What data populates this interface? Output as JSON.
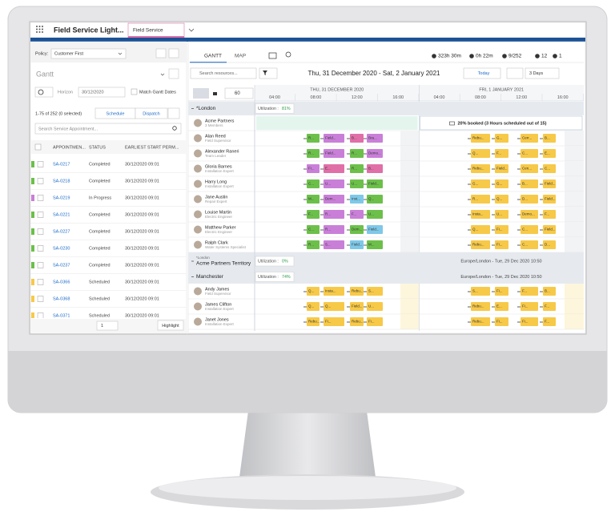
{
  "top_bar": {
    "app_name": "Field Service Light...",
    "tab": "Field Service"
  },
  "left_panel": {
    "policy_label": "Policy:",
    "policy": "Customer First",
    "view": "Gantt",
    "horizon_label": "Horizon",
    "horizon_date": "30/12/2020",
    "match_label": "Match Gantt Dates",
    "count": "1-75 of 252 (0 selected)",
    "schedule": "Schedule",
    "dispatch": "Dispatch",
    "search_placeholder": "Search Service Appointment...",
    "columns": [
      "APPOINTMEN...",
      "STATUS",
      "EARLIEST START PERM..."
    ],
    "rows": [
      {
        "id": "SA-0217",
        "status": "Completed",
        "start": "30/12/2020 09:01",
        "color": "#6cc04a"
      },
      {
        "id": "SA-0218",
        "status": "Completed",
        "start": "30/12/2020 09:01",
        "color": "#6cc04a"
      },
      {
        "id": "SA-0219",
        "status": "In Progress",
        "start": "30/12/2020 09:01",
        "color": "#c97fd8"
      },
      {
        "id": "SA-0221",
        "status": "Completed",
        "start": "30/12/2020 09:01",
        "color": "#6cc04a"
      },
      {
        "id": "SA-0227",
        "status": "Completed",
        "start": "30/12/2020 09:01",
        "color": "#6cc04a"
      },
      {
        "id": "SA-0230",
        "status": "Completed",
        "start": "30/12/2020 09:01",
        "color": "#6cc04a"
      },
      {
        "id": "SA-0237",
        "status": "Completed",
        "start": "30/12/2020 09:01",
        "color": "#6cc04a"
      },
      {
        "id": "SA-0366",
        "status": "Scheduled",
        "start": "30/12/2020 09:01",
        "color": "#f7c948"
      },
      {
        "id": "SA-0368",
        "status": "Scheduled",
        "start": "30/12/2020 09:01",
        "color": "#f7c948"
      },
      {
        "id": "SA-0371",
        "status": "Scheduled",
        "start": "30/12/2020 09:01",
        "color": "#f7c948"
      }
    ],
    "page": "1",
    "highlight": "Highlight"
  },
  "gantt": {
    "tabs": [
      "GANTT",
      "MAP"
    ],
    "stats": [
      "323h 30m",
      "0h 22m",
      "9/252",
      "12",
      "1"
    ],
    "date_range": "Thu, 31 December 2020 - Sat, 2 January 2021",
    "today": "Today",
    "range": "3 Days",
    "search_placeholder": "Search resources...",
    "zoom": "60",
    "days": [
      "THU, 31 DECEMBER 2020",
      "FRI, 1 JANUARY 2021"
    ],
    "times": [
      [
        "04:00",
        "08:00",
        "12:00",
        "16:00"
      ],
      [
        "04:00",
        "08:00",
        "12:00",
        "16:00"
      ]
    ],
    "groups": [
      {
        "name": "*London",
        "utilization_label": "Utilization :",
        "utilization": "81%",
        "crew": {
          "name": "Acme Partners",
          "role": "3 Members",
          "booking": "20% booked (3 Hours scheduled out of 15)"
        },
        "resources": [
          {
            "name": "Alan Reed",
            "role": "Field Supervisor",
            "day1": [
              [
                "R...",
                "#6cc04a"
              ],
              [
                "Field...",
                "#c97fd8"
              ],
              [
                "B...",
                "#e06fa8"
              ],
              [
                "Bra...",
                "#c97fd8"
              ]
            ],
            "day2": [
              [
                "Rebu...",
                "#f7c948"
              ],
              [
                "G...",
                "#f7c948"
              ],
              [
                "Cerr...",
                "#f7c948"
              ],
              [
                "B...",
                "#f7c948"
              ]
            ]
          },
          {
            "name": "Alexander Raneri",
            "role": "Team Leader",
            "day1": [
              [
                "R...",
                "#6cc04a"
              ],
              [
                "Field...",
                "#c97fd8"
              ],
              [
                "R...",
                "#6cc04a"
              ],
              [
                "Demo...",
                "#c97fd8"
              ]
            ],
            "day2": [
              [
                "Q...",
                "#f7c948"
              ],
              [
                "F...",
                "#f7c948"
              ],
              [
                "C...",
                "#f7c948"
              ],
              [
                "E...",
                "#f7c948"
              ]
            ]
          },
          {
            "name": "Gloria Barnes",
            "role": "Installation Expert",
            "day1": [
              [
                "Fi...",
                "#c97fd8"
              ],
              [
                "E...",
                "#e06fa8"
              ],
              [
                "R...",
                "#6cc04a"
              ],
              [
                "B...",
                "#e06fa8"
              ]
            ],
            "day2": [
              [
                "Rebu...",
                "#f7c948"
              ],
              [
                "Field...",
                "#f7c948"
              ],
              [
                "Cen...",
                "#f7c948"
              ],
              [
                "C...",
                "#f7c948"
              ]
            ]
          },
          {
            "name": "Harry Long",
            "role": "Installation Expert",
            "day1": [
              [
                "C...",
                "#6cc04a"
              ],
              [
                "U...",
                "#c97fd8"
              ],
              [
                "U...",
                "#6cc04a"
              ],
              [
                "Field...",
                "#6cc04a"
              ]
            ],
            "day2": [
              [
                "G...",
                "#f7c948"
              ],
              [
                "G...",
                "#f7c948"
              ],
              [
                "B...",
                "#f7c948"
              ],
              [
                "Field...",
                "#f7c948"
              ]
            ]
          },
          {
            "name": "Jane Austin",
            "role": "Repair Expert",
            "day1": [
              [
                "M...",
                "#6cc04a"
              ],
              [
                "Dem...",
                "#c97fd8"
              ],
              [
                "Inst...",
                "#7ec8e8"
              ],
              [
                "Q...",
                "#6cc04a"
              ]
            ],
            "day2": [
              [
                "R...",
                "#f7c948"
              ],
              [
                "Q...",
                "#f7c948"
              ],
              [
                "D...",
                "#f7c948"
              ],
              [
                "Field...",
                "#f7c948"
              ]
            ]
          },
          {
            "name": "Louise Martin",
            "role": "Electric Engineer",
            "day1": [
              [
                "F...",
                "#6cc04a"
              ],
              [
                "R...",
                "#c97fd8"
              ],
              [
                "F...",
                "#c97fd8"
              ],
              [
                "U...",
                "#6cc04a"
              ]
            ],
            "day2": [
              [
                "Insta...",
                "#f7c948"
              ],
              [
                "U...",
                "#f7c948"
              ],
              [
                "Demo...",
                "#f7c948"
              ],
              [
                "F...",
                "#f7c948"
              ]
            ]
          },
          {
            "name": "Matthew Parker",
            "role": "Electric Engineer",
            "day1": [
              [
                "C...",
                "#6cc04a"
              ],
              [
                "R...",
                "#c97fd8"
              ],
              [
                "Dem...",
                "#6cc04a"
              ],
              [
                "Field...",
                "#7ec8e8"
              ]
            ],
            "day2": [
              [
                "Q...",
                "#f7c948"
              ],
              [
                "Fi...",
                "#f7c948"
              ],
              [
                "C...",
                "#f7c948"
              ],
              [
                "Field...",
                "#f7c948"
              ]
            ]
          },
          {
            "name": "Ralph Clark",
            "role": "Water Systems Specialist",
            "day1": [
              [
                "R...",
                "#6cc04a"
              ],
              [
                "S...",
                "#c97fd8"
              ],
              [
                "Field...",
                "#7ec8e8"
              ],
              [
                "M...",
                "#6cc04a"
              ]
            ],
            "day2": [
              [
                "Rebu...",
                "#f7c948"
              ],
              [
                "Fi...",
                "#f7c948"
              ],
              [
                "C...",
                "#f7c948"
              ],
              [
                "D...",
                "#f7c948"
              ]
            ]
          }
        ]
      },
      {
        "parent": "*London",
        "name": "Acme Partners Territory",
        "utilization_label": "Utilization :",
        "utilization": "0%",
        "timezone": "Europe/London - Tue, 29 Dec 2020 10:50",
        "resources": []
      },
      {
        "name": "Manchester",
        "utilization_label": "Utilization :",
        "utilization": "74%",
        "timezone": "Europe/London - Tue, 29 Dec 2020 10:50",
        "resources": [
          {
            "name": "Andy James",
            "role": "Field Supervisor",
            "day1": [
              [
                "Q...",
                "#f7c948"
              ],
              [
                "Insta...",
                "#f7c948"
              ],
              [
                "Rebu...",
                "#f7c948"
              ],
              [
                "S...",
                "#f7c948"
              ]
            ],
            "day2": [
              [
                "S...",
                "#f7c948"
              ],
              [
                "Fi...",
                "#f7c948"
              ],
              [
                "F...",
                "#f7c948"
              ],
              [
                "B...",
                "#f7c948"
              ]
            ]
          },
          {
            "name": "James Clifton",
            "role": "Installation Expert",
            "day1": [
              [
                "Q...",
                "#f7c948"
              ],
              [
                "Q...",
                "#f7c948"
              ],
              [
                "Field...",
                "#f7c948"
              ],
              [
                "U...",
                "#f7c948"
              ]
            ],
            "day2": [
              [
                "Rebu...",
                "#f7c948"
              ],
              [
                "E...",
                "#f7c948"
              ],
              [
                "Fi...",
                "#f7c948"
              ],
              [
                "F...",
                "#f7c948"
              ]
            ]
          },
          {
            "name": "Janet Jones",
            "role": "Installation Expert",
            "day1": [
              [
                "Rebu...",
                "#f7c948"
              ],
              [
                "Fi...",
                "#f7c948"
              ],
              [
                "Rebu...",
                "#f7c948"
              ],
              [
                "Fi...",
                "#f7c948"
              ]
            ],
            "day2": [
              [
                "Rebu...",
                "#f7c948"
              ],
              [
                "Fi...",
                "#f7c948"
              ],
              [
                "Fi...",
                "#f7c948"
              ],
              [
                "F...",
                "#f7c948"
              ]
            ]
          }
        ]
      }
    ]
  }
}
